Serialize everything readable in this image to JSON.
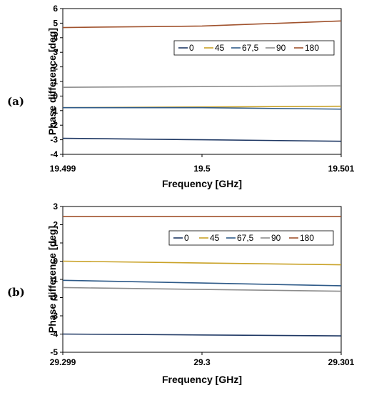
{
  "chart_data": [
    {
      "type": "line",
      "panel_label": "(a)",
      "xlabel": "Frequency [GHz]",
      "ylabel": "Phase difference [deg]",
      "x": [
        19.499,
        19.5,
        19.501
      ],
      "xticks": [
        "19.499",
        "19.5",
        "19.501"
      ],
      "ylim": [
        -4,
        6
      ],
      "yticks": [
        6,
        5,
        4,
        3,
        2,
        1,
        0,
        -1,
        -2,
        -3,
        -4
      ],
      "grid": false,
      "legend_position": "top-right",
      "series": [
        {
          "name": "0",
          "color": "#1f3864",
          "values": [
            -2.9,
            -3.0,
            -3.1
          ]
        },
        {
          "name": "45",
          "color": "#c9a227",
          "values": [
            -0.8,
            -0.75,
            -0.7
          ]
        },
        {
          "name": "67,5",
          "color": "#2e5a88",
          "values": [
            -0.8,
            -0.8,
            -0.9
          ]
        },
        {
          "name": "90",
          "color": "#8c8c8c",
          "values": [
            0.6,
            0.65,
            0.7
          ]
        },
        {
          "name": "180",
          "color": "#a0522d",
          "values": [
            4.7,
            4.8,
            5.15
          ]
        }
      ]
    },
    {
      "type": "line",
      "panel_label": "(b)",
      "xlabel": "Frequency [GHz]",
      "ylabel": "Phase difference [deg]",
      "x": [
        29.299,
        29.3,
        29.301
      ],
      "xticks": [
        "29.299",
        "29.3",
        "29.301"
      ],
      "ylim": [
        -5,
        3
      ],
      "yticks": [
        3,
        2,
        1,
        0,
        -1,
        -2,
        -3,
        -4,
        -5
      ],
      "grid": false,
      "legend_position": "top-right",
      "series": [
        {
          "name": "0",
          "color": "#1f3864",
          "values": [
            -4.0,
            -4.05,
            -4.1
          ]
        },
        {
          "name": "45",
          "color": "#c9a227",
          "values": [
            0.0,
            -0.1,
            -0.2
          ]
        },
        {
          "name": "67,5",
          "color": "#2e5a88",
          "values": [
            -1.05,
            -1.2,
            -1.35
          ]
        },
        {
          "name": "90",
          "color": "#8c8c8c",
          "values": [
            -1.45,
            -1.55,
            -1.65
          ]
        },
        {
          "name": "180",
          "color": "#a0522d",
          "values": [
            2.45,
            2.45,
            2.45
          ]
        }
      ]
    }
  ]
}
